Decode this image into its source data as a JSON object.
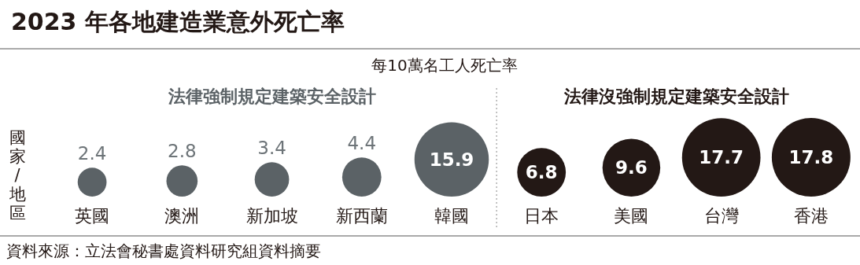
{
  "chart_data": {
    "type": "other",
    "title": "2023 年各地建造業意外死亡率",
    "subtitle": "每10萬名工人死亡率",
    "ylabel": "國家/地區",
    "categories": [
      "英國",
      "澳洲",
      "新加坡",
      "新西蘭",
      "韓國",
      "日本",
      "美國",
      "台灣",
      "香港"
    ],
    "series": [
      {
        "name": "法律強制規定建築安全設計",
        "color": "#5b6266",
        "values": [
          2.4,
          2.8,
          3.4,
          4.4,
          15.9,
          null,
          null,
          null,
          null
        ]
      },
      {
        "name": "法律沒強制規定建築安全設計",
        "color": "#231815",
        "values": [
          null,
          null,
          null,
          null,
          null,
          6.8,
          9.6,
          17.7,
          17.8
        ]
      }
    ],
    "data_labels": true,
    "annotations": [
      "資料來源：立法會秘書處資料研究組資料摘要"
    ]
  }
}
